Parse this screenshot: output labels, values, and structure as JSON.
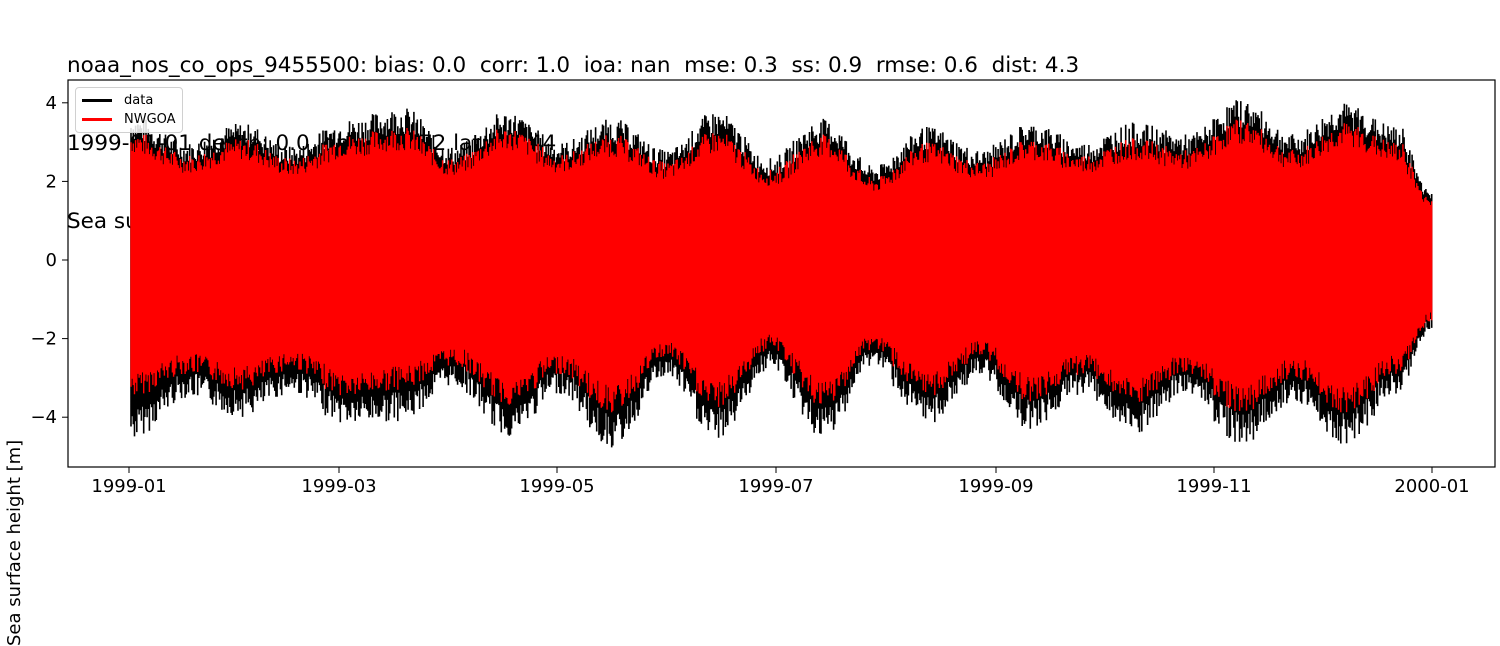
{
  "title": {
    "line1": "noaa_nos_co_ops_9455500: bias: 0.0  corr: 1.0  ioa: nan  mse: 0.3  ss: 0.9  rmse: 0.6  dist: 4.3",
    "line2": "1999-01-01 depth: 0.0 lon: -151.72 lat: 59.44",
    "line3": "Sea surface height with mean subtracted, from fixed station"
  },
  "legend": {
    "items": [
      {
        "label": "data",
        "color": "#000000"
      },
      {
        "label": "NWGOA",
        "color": "#ff0000"
      }
    ]
  },
  "axes": {
    "ylabel": "Sea surface height [m]",
    "yticks": [
      {
        "value": 4,
        "label": "4"
      },
      {
        "value": 2,
        "label": "2"
      },
      {
        "value": 0,
        "label": "0"
      },
      {
        "value": -2,
        "label": "−2"
      },
      {
        "value": -4,
        "label": "−4"
      }
    ],
    "xticks": [
      {
        "label": "1999-01",
        "px": 129
      },
      {
        "label": "1999-03",
        "px": 339
      },
      {
        "label": "1999-05",
        "px": 557
      },
      {
        "label": "1999-07",
        "px": 776
      },
      {
        "label": "1999-09",
        "px": 996
      },
      {
        "label": "1999-11",
        "px": 1214
      },
      {
        "label": "2000-01",
        "px": 1432
      }
    ]
  },
  "chart_data": {
    "type": "line",
    "title": "noaa_nos_co_ops_9455500: bias: 0.0  corr: 1.0  ioa: nan  mse: 0.3  ss: 0.9  rmse: 0.6  dist: 4.3 | 1999-01-01 depth: 0.0 lon: -151.72 lat: 59.44 | Sea surface height with mean subtracted, from fixed station",
    "xlabel": "",
    "ylabel": "Sea surface height [m]",
    "xlim": [
      "1998-12-23",
      "2000-01-12"
    ],
    "ylim": [
      -5.2,
      4.55
    ],
    "grid": false,
    "legend_position": "upper left",
    "x_tick_labels": [
      "1999-01",
      "1999-03",
      "1999-05",
      "1999-07",
      "1999-09",
      "1999-11",
      "2000-01"
    ],
    "y_tick_labels": [
      "−4",
      "−2",
      "0",
      "2",
      "4"
    ],
    "series": [
      {
        "name": "data",
        "color": "#000000",
        "description": "Hourly tidal sea surface height, spring-neap modulated envelope",
        "envelope_dates": [
          "1999-01-01",
          "1999-01-17",
          "1999-02-01",
          "1999-02-15",
          "1999-03-03",
          "1999-03-18",
          "1999-04-01",
          "1999-04-17",
          "1999-05-01",
          "1999-05-16",
          "1999-05-31",
          "1999-06-14",
          "1999-06-29",
          "1999-07-14",
          "1999-07-28",
          "1999-08-12",
          "1999-08-27",
          "1999-09-10",
          "1999-09-25",
          "1999-10-09",
          "1999-10-24",
          "1999-11-08",
          "1999-11-23",
          "1999-12-07",
          "1999-12-22",
          "1999-12-31"
        ],
        "envelope_max": [
          3.7,
          3.0,
          3.5,
          2.9,
          3.6,
          3.9,
          2.9,
          3.8,
          3.0,
          3.6,
          2.8,
          3.8,
          2.6,
          3.6,
          2.4,
          3.4,
          2.8,
          3.5,
          3.0,
          3.5,
          3.2,
          4.1,
          3.2,
          4.0,
          3.4,
          1.8
        ],
        "envelope_min": [
          -4.6,
          -3.5,
          -4.0,
          -3.4,
          -4.2,
          -4.1,
          -3.2,
          -4.5,
          -3.4,
          -4.8,
          -3.0,
          -4.6,
          -2.8,
          -4.6,
          -2.7,
          -4.2,
          -3.0,
          -4.3,
          -3.4,
          -4.5,
          -3.4,
          -4.7,
          -3.6,
          -4.7,
          -3.4,
          -1.8
        ]
      },
      {
        "name": "NWGOA",
        "color": "#ff0000",
        "description": "Model sea surface height, slightly smaller amplitude than data",
        "envelope_dates": [
          "1999-01-01",
          "1999-01-17",
          "1999-02-01",
          "1999-02-15",
          "1999-03-03",
          "1999-03-18",
          "1999-04-01",
          "1999-04-17",
          "1999-05-01",
          "1999-05-16",
          "1999-05-31",
          "1999-06-14",
          "1999-06-29",
          "1999-07-14",
          "1999-07-28",
          "1999-08-12",
          "1999-08-27",
          "1999-09-10",
          "1999-09-25",
          "1999-10-09",
          "1999-10-24",
          "1999-11-08",
          "1999-11-23",
          "1999-12-07",
          "1999-12-22",
          "1999-12-31"
        ],
        "envelope_max": [
          3.3,
          2.7,
          3.1,
          2.6,
          3.2,
          3.4,
          2.6,
          3.4,
          2.7,
          3.2,
          2.5,
          3.3,
          2.3,
          3.2,
          2.1,
          3.0,
          2.5,
          3.1,
          2.7,
          3.1,
          2.8,
          3.6,
          2.8,
          3.5,
          3.0,
          1.6
        ],
        "envelope_min": [
          -3.5,
          -2.9,
          -3.3,
          -2.8,
          -3.5,
          -3.3,
          -2.7,
          -3.7,
          -2.9,
          -3.9,
          -2.5,
          -3.8,
          -2.3,
          -3.8,
          -2.3,
          -3.5,
          -2.5,
          -3.6,
          -2.9,
          -3.7,
          -2.9,
          -3.9,
          -3.0,
          -3.9,
          -2.9,
          -1.6
        ]
      }
    ]
  }
}
